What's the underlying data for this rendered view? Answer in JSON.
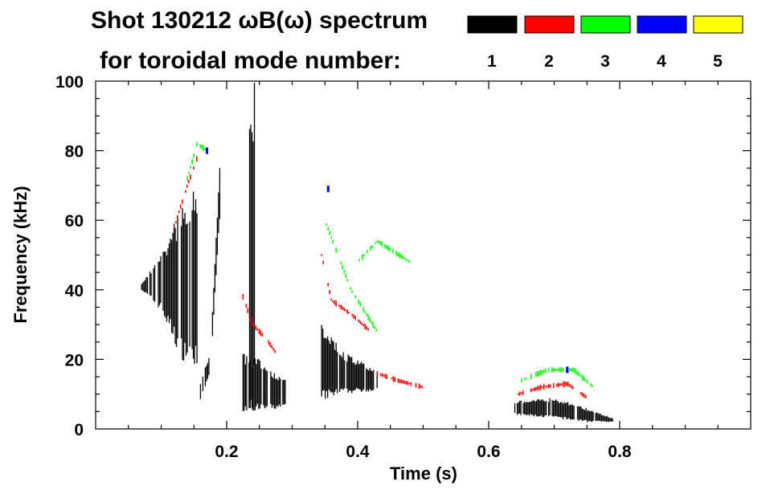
{
  "chart_data": {
    "type": "heatmap",
    "title_line1": "Shot 130212 ωB(ω) spectrum",
    "title_line2": "for toroidal mode number:",
    "xlabel": "Time (s)",
    "ylabel": "Frequency (kHz)",
    "xlim": [
      0.0,
      1.0
    ],
    "ylim": [
      0,
      100
    ],
    "x_ticks_major": [
      "0.2",
      "0.4",
      "0.6",
      "0.8"
    ],
    "x_tick_values": [
      0.2,
      0.4,
      0.6,
      0.8
    ],
    "y_ticks_major": [
      "0",
      "20",
      "40",
      "60",
      "80",
      "100"
    ],
    "y_tick_values": [
      0,
      20,
      40,
      60,
      80,
      100
    ],
    "grid": false,
    "legend": {
      "placement": "top-right",
      "entries": [
        {
          "label": "1",
          "color": "#000000"
        },
        {
          "label": "2",
          "color": "#ff0000"
        },
        {
          "label": "3",
          "color": "#00ff00"
        },
        {
          "label": "4",
          "color": "#0000ff"
        },
        {
          "label": "5",
          "color": "#ffff00"
        }
      ]
    },
    "mode_colors": {
      "1": "#000000",
      "2": "#ff0000",
      "3": "#00ff00",
      "4": "#0000ff",
      "5": "#ffff00"
    },
    "features": [
      {
        "mode": "1",
        "shape": "band",
        "t": [
          0.07,
          0.1,
          0.13,
          0.155
        ],
        "f_lo": [
          40,
          34,
          20,
          18
        ],
        "f_hi": [
          42,
          50,
          65,
          72
        ]
      },
      {
        "mode": "1",
        "shape": "band",
        "t": [
          0.16,
          0.175,
          0.19
        ],
        "f_lo": [
          8,
          16,
          62
        ],
        "f_hi": [
          14,
          22,
          78
        ]
      },
      {
        "mode": "1",
        "shape": "band",
        "t": [
          0.235,
          0.24,
          0.245
        ],
        "f_lo": [
          5,
          5,
          5
        ],
        "f_hi": [
          100,
          100,
          100
        ]
      },
      {
        "mode": "1",
        "shape": "band",
        "t": [
          0.225,
          0.25,
          0.29
        ],
        "f_lo": [
          5,
          5,
          6
        ],
        "f_hi": [
          22,
          20,
          14
        ]
      },
      {
        "mode": "1",
        "shape": "band",
        "t": [
          0.345,
          0.38,
          0.43
        ],
        "f_lo": [
          8,
          10,
          11
        ],
        "f_hi": [
          30,
          22,
          17
        ]
      },
      {
        "mode": "1",
        "shape": "band",
        "t": [
          0.64,
          0.7,
          0.75,
          0.79
        ],
        "f_lo": [
          4,
          3,
          2,
          2
        ],
        "f_hi": [
          8,
          9,
          6,
          3
        ]
      },
      {
        "mode": "2",
        "shape": "line",
        "t": [
          0.12,
          0.14,
          0.155
        ],
        "f": [
          58,
          70,
          78
        ]
      },
      {
        "mode": "2",
        "shape": "line",
        "t": [
          0.225,
          0.24,
          0.26,
          0.275
        ],
        "f": [
          38,
          30,
          26,
          22
        ]
      },
      {
        "mode": "2",
        "shape": "line",
        "t": [
          0.345,
          0.36,
          0.39,
          0.42
        ],
        "f": [
          50,
          37,
          33,
          28
        ]
      },
      {
        "mode": "2",
        "shape": "line",
        "t": [
          0.43,
          0.46,
          0.5
        ],
        "f": [
          16,
          14,
          12
        ]
      },
      {
        "mode": "2",
        "shape": "line",
        "t": [
          0.645,
          0.68,
          0.72,
          0.75
        ],
        "f": [
          10,
          12,
          13,
          9
        ]
      },
      {
        "mode": "3",
        "shape": "line",
        "t": [
          0.14,
          0.155,
          0.17
        ],
        "f": [
          72,
          82,
          80
        ]
      },
      {
        "mode": "3",
        "shape": "line",
        "t": [
          0.35,
          0.39,
          0.43
        ],
        "f": [
          60,
          40,
          28
        ]
      },
      {
        "mode": "3",
        "shape": "line",
        "t": [
          0.4,
          0.43,
          0.48
        ],
        "f": [
          48,
          54,
          48
        ]
      },
      {
        "mode": "3",
        "shape": "line",
        "t": [
          0.65,
          0.69,
          0.73,
          0.76
        ],
        "f": [
          14,
          17,
          17,
          12
        ]
      },
      {
        "mode": "4",
        "shape": "point",
        "t": [
          0.17,
          0.355,
          0.72
        ],
        "f": [
          80,
          69,
          17
        ]
      }
    ]
  }
}
